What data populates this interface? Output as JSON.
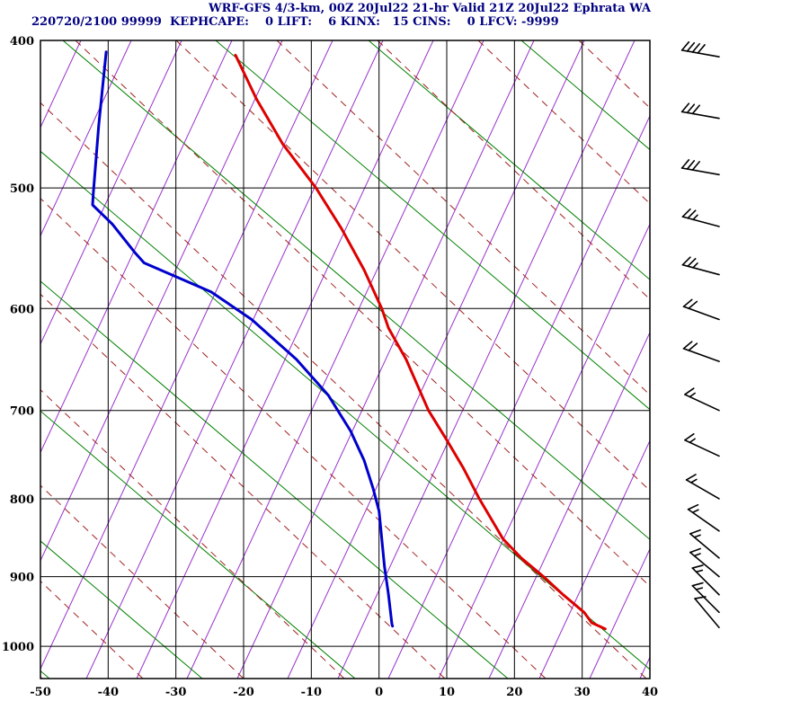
{
  "title": {
    "line1": "WRF-GFS 4/3-km, 00Z 20Jul22 21-hr Valid 21Z 20Jul22 Ephrata WA",
    "station_line": "220720/2100 99999  KEPH",
    "indices_line": "CAPE:    0 LIFT:    6 KINX:   15 CINS:    0 LFCV: -9999"
  },
  "colors": {
    "title": "#000080",
    "temperature": "#dd0000",
    "dewpoint": "#0000cc",
    "grid": "#000000",
    "axis_label": "#000000",
    "mixing_ratio": "#9932cc",
    "dry_adiabat": "#008000",
    "moist_adiabat": "#a02020",
    "wind_barb": "#000000",
    "background": "#ffffff"
  },
  "chart_data": {
    "type": "line",
    "title": "WRF-GFS 4/3-km, 00Z 20Jul22 21-hr Valid 21Z 20Jul22 Ephrata WA",
    "subtitle": "220720/2100 99999 KEPH CAPE: 0 LIFT: 6 KINX: 15 CINS: 0 LFCV: -9999",
    "x_axis": {
      "ticks": [
        -50,
        -40,
        -30,
        -20,
        -10,
        0,
        10,
        20,
        30,
        40
      ],
      "range": [
        -50,
        40
      ]
    },
    "y_axis": {
      "ticks": [
        400,
        500,
        600,
        700,
        800,
        900,
        1000
      ],
      "range": [
        400,
        1050
      ],
      "scale": "log-pressure"
    },
    "grid": "on",
    "series": [
      {
        "name": "temperature",
        "color": "#dd0000",
        "points": [
          [
            409,
            -21.2
          ],
          [
            437,
            -18.1
          ],
          [
            468,
            -14.2
          ],
          [
            500,
            -9.3
          ],
          [
            532,
            -5.5
          ],
          [
            566,
            -2.2
          ],
          [
            600,
            0.4
          ],
          [
            618,
            1.4
          ],
          [
            648,
            4.0
          ],
          [
            700,
            7.3
          ],
          [
            732,
            10.0
          ],
          [
            763,
            12.4
          ],
          [
            800,
            14.8
          ],
          [
            850,
            18.3
          ],
          [
            875,
            21.0
          ],
          [
            900,
            24.3
          ],
          [
            925,
            27.2
          ],
          [
            950,
            30.3
          ],
          [
            965,
            31.4
          ],
          [
            974,
            33.4
          ]
        ]
      },
      {
        "name": "dewpoint",
        "color": "#0000cc",
        "points": [
          [
            407,
            -40.3
          ],
          [
            455,
            -41.4
          ],
          [
            504,
            -42.2
          ],
          [
            513,
            -42.3
          ],
          [
            528,
            -39.4
          ],
          [
            551,
            -36.1
          ],
          [
            560,
            -34.7
          ],
          [
            585,
            -24.8
          ],
          [
            610,
            -18.8
          ],
          [
            648,
            -12.2
          ],
          [
            684,
            -7.5
          ],
          [
            722,
            -4.2
          ],
          [
            755,
            -2.2
          ],
          [
            787,
            -0.9
          ],
          [
            815,
            0.0
          ],
          [
            886,
            0.8
          ],
          [
            925,
            1.4
          ],
          [
            967,
            1.9
          ],
          [
            970,
            2.0
          ]
        ]
      }
    ],
    "wind_barbs": [
      {
        "p": 410,
        "dir": 280,
        "speed": 40
      },
      {
        "p": 450,
        "dir": 280,
        "speed": 30
      },
      {
        "p": 490,
        "dir": 280,
        "speed": 30
      },
      {
        "p": 530,
        "dir": 285,
        "speed": 25
      },
      {
        "p": 570,
        "dir": 285,
        "speed": 25
      },
      {
        "p": 610,
        "dir": 290,
        "speed": 20
      },
      {
        "p": 650,
        "dir": 290,
        "speed": 20
      },
      {
        "p": 700,
        "dir": 295,
        "speed": 15
      },
      {
        "p": 750,
        "dir": 295,
        "speed": 15
      },
      {
        "p": 800,
        "dir": 300,
        "speed": 15
      },
      {
        "p": 840,
        "dir": 305,
        "speed": 15
      },
      {
        "p": 875,
        "dir": 310,
        "speed": 15
      },
      {
        "p": 900,
        "dir": 310,
        "speed": 15
      },
      {
        "p": 925,
        "dir": 315,
        "speed": 15
      },
      {
        "p": 950,
        "dir": 315,
        "speed": 15
      },
      {
        "p": 972,
        "dir": 320,
        "speed": 10
      }
    ]
  }
}
